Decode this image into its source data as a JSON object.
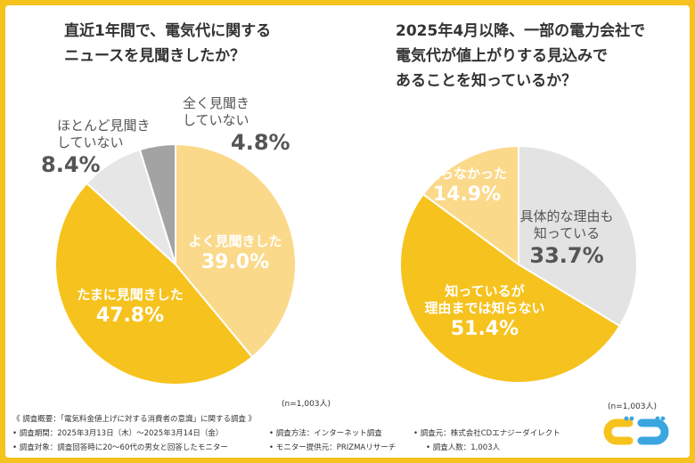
{
  "chart_data": [
    {
      "type": "pie",
      "title_lines": [
        "直近1年間で、電気代に関する",
        "ニュースを見聞きしたか？"
      ],
      "categories": [
        "よく見聞きした",
        "たまに見聞きした",
        "ほとんど見聞きしていない",
        "全く見聞きしていない"
      ],
      "values": [
        39.0,
        47.8,
        8.4,
        4.8
      ],
      "value_labels": [
        "39.0%",
        "47.8%",
        "8.4%",
        "4.8%"
      ],
      "label_lines": [
        [
          "よく見聞きした"
        ],
        [
          "たまに見聞きした"
        ],
        [
          "ほとんど見聞き",
          "していない"
        ],
        [
          "全く見聞き",
          "していない"
        ]
      ],
      "colors": [
        "#fbd98a",
        "#f6c21d",
        "#e6e6e6",
        "#a3a3a3"
      ],
      "sample": "(n=1,003人)"
    },
    {
      "type": "pie",
      "title_lines": [
        "2025年4月以降、一部の電力会社で",
        "電気代が値上がりする見込みで",
        "あることを知っているか？"
      ],
      "categories": [
        "具体的な理由も知っている",
        "知っているが理由までは知らない",
        "知らなかった"
      ],
      "values": [
        33.7,
        51.4,
        14.9
      ],
      "value_labels": [
        "33.7%",
        "51.4%",
        "14.9%"
      ],
      "label_lines": [
        [
          "具体的な理由も",
          "知っている"
        ],
        [
          "知っているが",
          "理由までは知らない"
        ],
        [
          "知らなかった"
        ]
      ],
      "colors": [
        "#e3e3e3",
        "#f6c21d",
        "#fbd98a"
      ],
      "sample": "(n=1,003人)"
    }
  ],
  "notes": {
    "header": "《 調査概要：「電気料金値上げに対する消費者の意識」に関する調査 》",
    "period": "• 調査期間：2025年3月13日（木）～2025年3月14日（金）",
    "method": "• 調査方法：インターネット調査",
    "organizer": "• 調査元：株式会社CDエナジーダイレクト",
    "target": "• 調査対象：調査回答時に20～60代の男女と回答したモニター",
    "provider": "• モニター提供元：PRIZMAリサーチ",
    "count": "• 調査人数：1,003人"
  },
  "logo_name": "CD Energy logo"
}
